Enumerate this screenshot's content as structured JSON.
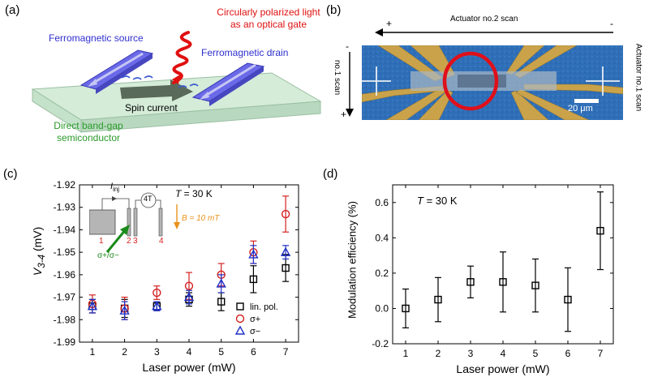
{
  "panel_a": {
    "label": "(a)",
    "light_label_line1": "Circularly polarized light",
    "light_label_line2": "as an optical gate",
    "source_label": "Ferromagnetic source",
    "drain_label": "Ferromagnetic drain",
    "spin_current_label": "Spin current",
    "semiconductor_line1": "Direct band-gap",
    "semiconductor_line2": "semiconductor",
    "colors": {
      "source": "#3a3adf",
      "drain": "#3a3adf",
      "light": "#e01010",
      "semiconductor": "#2a9a2a",
      "substrate": "#cfe8d4"
    }
  },
  "panel_b": {
    "label": "(b)",
    "actuator2_label": "Actuator no.2 scan",
    "actuator1_label": "Actuator no.1 scan",
    "no1_scan_label": "no.1 scan",
    "plus_left": "+",
    "minus_right": "-",
    "minus_top": "-",
    "plus_bottom": "+",
    "scalebar_label": "20 μm",
    "colors": {
      "substrate": "#2f6fb8",
      "gold": "#c9a24a",
      "ring": "#e0101a"
    }
  },
  "panel_c": {
    "label": "(c)",
    "temperature_T": "T",
    "temperature_value": " = 30 K",
    "field_B": "B",
    "field_value": " = 10 mT",
    "inj_I": "I",
    "inj_sub": "inj",
    "fourT": "4T",
    "contact_labels": [
      "1",
      "2",
      "3",
      "4"
    ],
    "sigma_arrow_label": "σ+/σ−",
    "ylabel_V": "V",
    "ylabel_sub": "3-4",
    "ylabel_unit": " (mV)",
    "colors": {
      "lin": "#000000",
      "sp": "#d42020",
      "sm": "#2030c8",
      "field": "#e8921a",
      "arrow": "#1a8a1a"
    }
  },
  "panel_d": {
    "label": "(d)",
    "temperature_T": "T",
    "temperature_value": " = 30 K"
  },
  "chart_data": [
    {
      "type": "scatter",
      "panel": "(c)",
      "xlabel": "Laser power (mW)",
      "ylabel": "V3-4 (mV)",
      "xlim": [
        0.6,
        7.4
      ],
      "ylim": [
        -1.99,
        -1.92
      ],
      "x_ticks": [
        "1",
        "2",
        "3",
        "4",
        "5",
        "6",
        "7"
      ],
      "y_ticks": [
        "-1.92",
        "-1.93",
        "-1.94",
        "-1.95",
        "-1.96",
        "-1.97",
        "-1.98",
        "-1.99"
      ],
      "legend_position": "bottom-right",
      "series": [
        {
          "name": "lin. pol.",
          "marker": "square",
          "color": "#000000",
          "x": [
            1,
            2,
            3,
            4,
            5,
            6,
            7
          ],
          "y": [
            -1.974,
            -1.975,
            -1.974,
            -1.971,
            -1.972,
            -1.962,
            -1.957
          ],
          "err": [
            0.003,
            0.004,
            0.002,
            0.003,
            0.004,
            0.006,
            0.006
          ]
        },
        {
          "name": "σ+",
          "marker": "circle",
          "color": "#d42020",
          "x": [
            1,
            2,
            3,
            4,
            5,
            6,
            7
          ],
          "y": [
            -1.973,
            -1.975,
            -1.968,
            -1.965,
            -1.96,
            -1.95,
            -1.933
          ],
          "err": [
            0.004,
            0.005,
            0.003,
            0.006,
            0.005,
            0.005,
            0.008
          ]
        },
        {
          "name": "σ−",
          "marker": "triangle",
          "color": "#2030c8",
          "x": [
            1,
            2,
            3,
            4,
            5,
            6,
            7
          ],
          "y": [
            -1.974,
            -1.976,
            -1.974,
            -1.97,
            -1.964,
            -1.951,
            -1.95
          ],
          "err": [
            0.003,
            0.004,
            0.002,
            0.003,
            0.004,
            0.004,
            0.003
          ]
        }
      ]
    },
    {
      "type": "scatter",
      "panel": "(d)",
      "xlabel": "Laser power (mW)",
      "ylabel": "Modulation efficiency (%)",
      "xlim": [
        0.6,
        7.4
      ],
      "ylim": [
        -0.2,
        0.7
      ],
      "x_ticks": [
        "1",
        "2",
        "3",
        "4",
        "5",
        "6",
        "7"
      ],
      "y_ticks": [
        "0.6",
        "0.4",
        "0.2",
        "0.0",
        "-0.2"
      ],
      "series": [
        {
          "marker": "square",
          "color": "#000000",
          "x": [
            1,
            2,
            3,
            4,
            5,
            6,
            7
          ],
          "y": [
            0.0,
            0.05,
            0.15,
            0.15,
            0.13,
            0.05,
            0.44
          ],
          "err": [
            0.11,
            0.125,
            0.09,
            0.17,
            0.15,
            0.18,
            0.22
          ]
        }
      ]
    }
  ]
}
